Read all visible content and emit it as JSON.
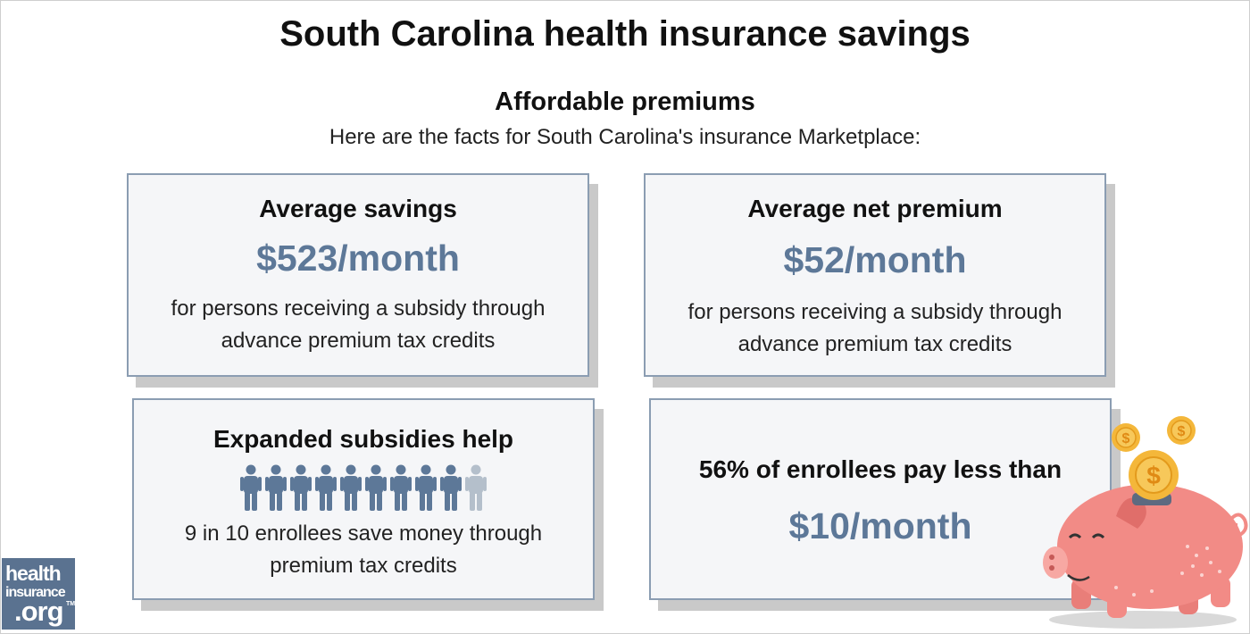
{
  "header": {
    "title": "South Carolina health insurance savings",
    "subtitle": "Affordable premiums",
    "intro": "Here are the facts for South Carolina's insurance Marketplace:"
  },
  "cards": [
    {
      "heading": "Average savings",
      "value": "$523/month",
      "note_line1": "for persons receiving a subsidy through",
      "note_line2": "advance premium tax credits"
    },
    {
      "heading": "Average net premium",
      "value": "$52/month",
      "note_line1": "for persons receiving a subsidy through",
      "note_line2": "advance premium tax credits"
    },
    {
      "heading": "Expanded subsidies help",
      "note_line1": "9 in 10 enrollees save money through",
      "note_line2": "premium tax credits",
      "people_total": 10,
      "people_highlighted": 9
    },
    {
      "heading": "56% of enrollees pay less than",
      "value": "$10/month"
    }
  ],
  "logo": {
    "line1": "health",
    "line2": "insurance",
    "line3": ".org",
    "tm": "TM"
  },
  "colors": {
    "accent": "#5d7898",
    "card_border": "#8b9db2",
    "card_bg": "#f5f6f8",
    "person_on": "#5d7898",
    "person_off": "#b4bfcb",
    "pig": "#f28b86",
    "coin": "#f4b73a"
  },
  "icons": [
    "person-icon",
    "piggy-bank-icon",
    "coin-icon",
    "logo"
  ]
}
